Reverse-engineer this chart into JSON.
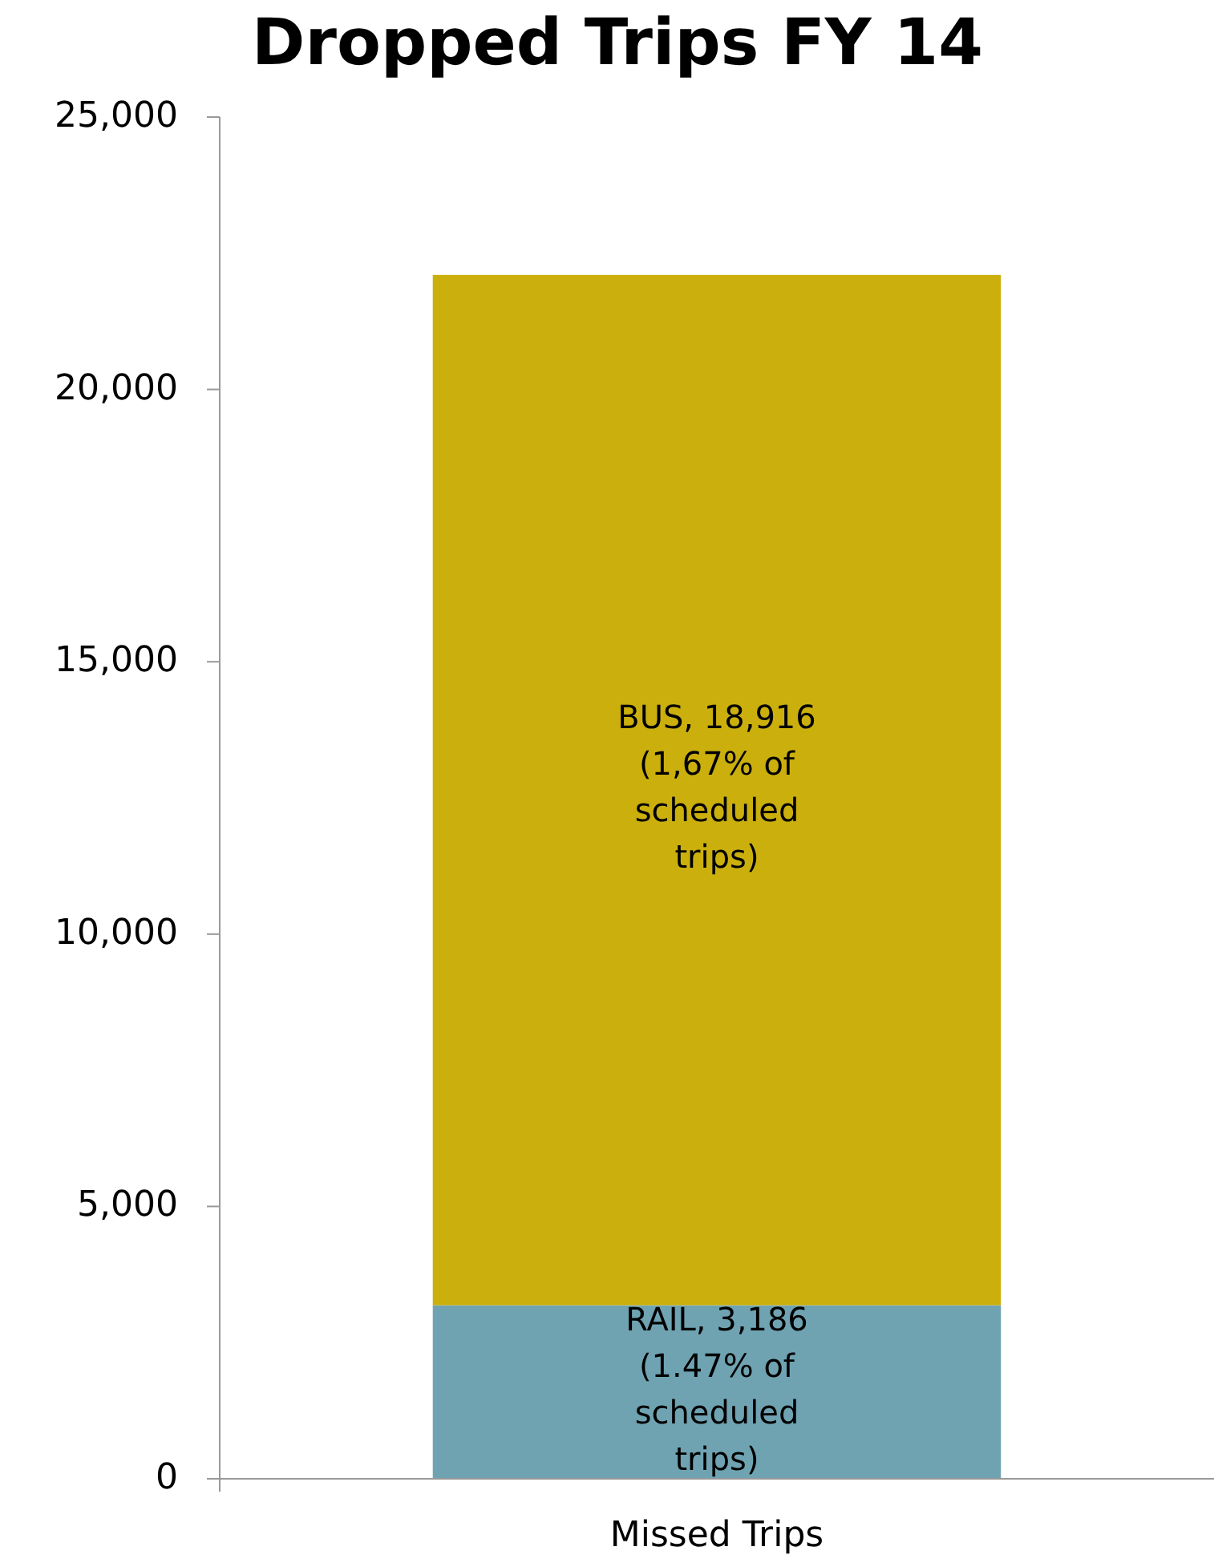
{
  "chart_data": {
    "type": "bar",
    "title": "Dropped Trips FY 14",
    "categories": [
      "Missed Trips"
    ],
    "stacked": true,
    "series": [
      {
        "color": "#6fa3b2",
        "values": [
          3186
        ],
        "value_labels": [
          "RAIL, 3,186 (1.47% of scheduled trips)"
        ]
      },
      {
        "color": "#cbaf0d",
        "values": [
          18916
        ],
        "value_labels": [
          "BUS, 18,916 (1,67% of scheduled trips)"
        ]
      }
    ],
    "ylim": [
      0,
      25000
    ],
    "yticks": [
      {
        "value": 0,
        "label": "0"
      },
      {
        "value": 5000,
        "label": "5,000"
      },
      {
        "value": 10000,
        "label": "10,000"
      },
      {
        "value": 15000,
        "label": "15,000"
      },
      {
        "value": 20000,
        "label": "20,000"
      },
      {
        "value": 25000,
        "label": "25,000"
      }
    ]
  }
}
